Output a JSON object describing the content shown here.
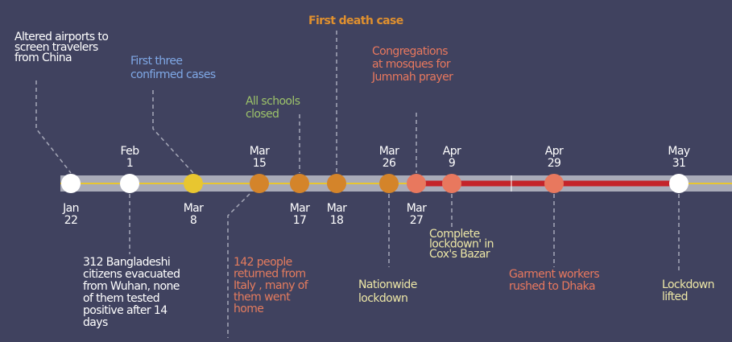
{
  "events": [
    {
      "month": "Jan",
      "day": "22",
      "dot_color": "#ffffff",
      "text_color": "#ffffff",
      "annotation": [
        "Altered airports to",
        "screen travelers",
        "from China"
      ]
    },
    {
      "month": "Feb",
      "day": "1",
      "dot_color": "#ffffff",
      "text_color": "#ffffff",
      "annotation": [
        "312 Bangladeshi",
        "citizens evacuated",
        "from Wuhan, none",
        "of them tested",
        "positive after 14",
        "days"
      ]
    },
    {
      "month": "Mar",
      "day": "8",
      "dot_color": "#e8c630",
      "text_color": "#7fa8e6",
      "annotation": [
        "First three",
        "confirmed cases"
      ]
    },
    {
      "month": "Mar",
      "day": "15",
      "dot_color": "#d4842a",
      "text_color": "#e57c5e",
      "annotation": [
        "142 people",
        "returned from",
        "Italy , many of",
        "them went",
        "home"
      ]
    },
    {
      "month": "Mar",
      "day": "17",
      "dot_color": "#d4842a",
      "text_color": "#9cc26a",
      "annotation": [
        "All schools",
        "closed"
      ]
    },
    {
      "month": "Mar",
      "day": "18",
      "dot_color": "#d4842a",
      "text_color": "#e0902e",
      "annotation": [
        "First death case"
      ]
    },
    {
      "month": "Mar",
      "day": "26",
      "dot_color": "#d4842a",
      "text_color": "#ece6a6",
      "annotation": [
        "Nationwide",
        "lockdown"
      ]
    },
    {
      "month": "Mar",
      "day": "27",
      "dot_color": "#e8785e",
      "text_color": "#e8785e",
      "annotation": [
        "Congregations",
        "at mosques for",
        "Jummah prayer"
      ]
    },
    {
      "month": "Apr",
      "day": "9",
      "dot_color": "#e8785e",
      "text_color": "#ece6a6",
      "annotation": [
        "Complete",
        "lockdown' in",
        "Cox's Bazar"
      ]
    },
    {
      "month": "Apr",
      "day": "29",
      "dot_color": "#e8785e",
      "text_color": "#e8785e",
      "annotation": [
        "Garment workers",
        "rushed to Dhaka"
      ]
    },
    {
      "month": "May",
      "day": "31",
      "dot_color": "#ffffff",
      "text_color": "#ece6a6",
      "annotation": [
        "Lockdown",
        "lifted"
      ]
    }
  ]
}
